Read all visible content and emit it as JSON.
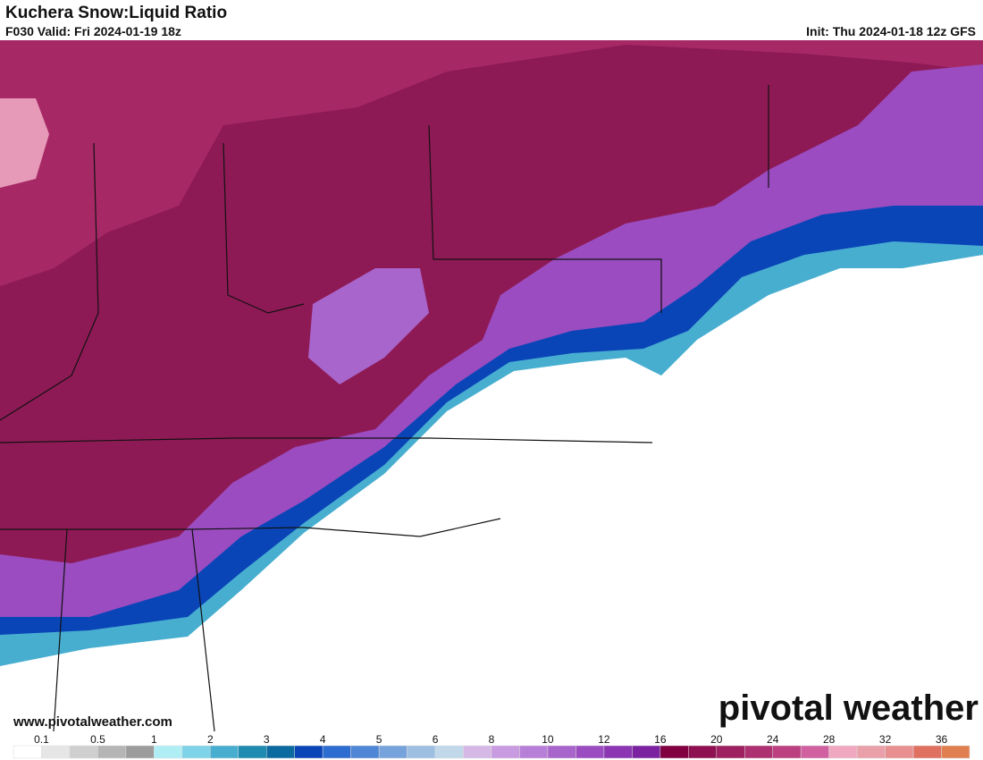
{
  "header": {
    "title": "Kuchera Snow:Liquid Ratio",
    "valid": "F030 Valid: Fri 2024-01-19 18z",
    "init": "Init: Thu 2024-01-18 12z GFS"
  },
  "map": {
    "website": "www.pivotalweather.com",
    "logo": "pivotal weather"
  },
  "legend": {
    "ticks": [
      "0.1",
      "0.5",
      "1",
      "2",
      "3",
      "4",
      "5",
      "6",
      "8",
      "10",
      "12",
      "16",
      "20",
      "24",
      "28",
      "32",
      "36"
    ],
    "colors": [
      "#ffffff",
      "#e6e6e6",
      "#cfcfcf",
      "#b5b5b5",
      "#9c9c9c",
      "#b0eef5",
      "#7fd3e8",
      "#48aed0",
      "#1f8bb0",
      "#0b6aa0",
      "#0a45b8",
      "#2d6cd0",
      "#4f86d6",
      "#77a3dc",
      "#9cbfe2",
      "#c0d8ea",
      "#d6b8e6",
      "#c89ae0",
      "#b87fd8",
      "#a865cc",
      "#9a4cc0",
      "#8c36b4",
      "#7a22a0",
      "#800040",
      "#8f1050",
      "#9e2060",
      "#ad3070",
      "#bc4080",
      "#d060a0",
      "#f0a8c0",
      "#eaa0a8",
      "#e89090",
      "#e07060",
      "#e08050"
    ]
  }
}
